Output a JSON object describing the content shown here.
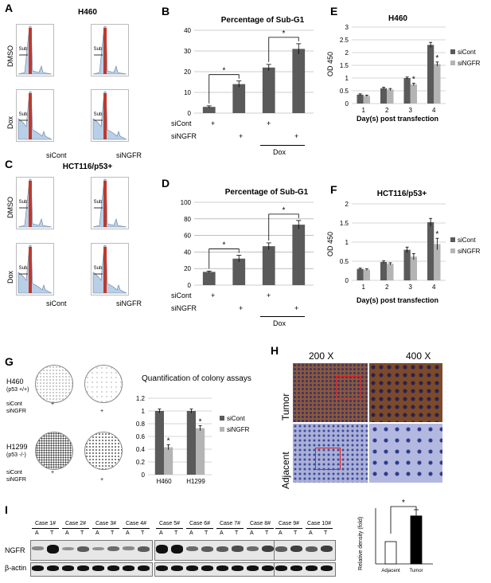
{
  "panels": {
    "A": {
      "letter": "A",
      "title": "H460",
      "row_labels": [
        "DMSO",
        "Dox"
      ],
      "col_labels": [
        "siCont",
        "siNGFR"
      ],
      "subg1": "Sub\n-G1"
    },
    "B": {
      "letter": "B",
      "title": "Percentage of Sub-G1",
      "rows": [
        "siCont",
        "siNGFR"
      ],
      "dox": "Dox"
    },
    "C": {
      "letter": "C",
      "title": "HCT116/p53+",
      "row_labels": [
        "DMSO",
        "Dox"
      ],
      "col_labels": [
        "siCont",
        "siNGFR"
      ]
    },
    "D": {
      "letter": "D",
      "title": "Percentage of Sub-G1",
      "rows": [
        "siCont",
        "siNGFR"
      ],
      "dox": "Dox"
    },
    "E": {
      "letter": "E",
      "title": "H460",
      "xlabel": "Day(s) post transfection",
      "ylabel": "OD 450",
      "legend": [
        "siCont",
        "siNGFR"
      ]
    },
    "F": {
      "letter": "F",
      "title": "HCT116/p53+",
      "xlabel": "Day(s) post transfection",
      "ylabel": "OD 450",
      "legend": [
        "siCont",
        "siNGFR"
      ]
    },
    "G": {
      "letter": "G",
      "title": "Quantification of colony assays",
      "cell1": "H460",
      "cell1_type": "(p53 +/+)",
      "cell2": "H1299",
      "cell2_type": "(p53 -/-)",
      "row1": "siCont",
      "row2": "siNGFR",
      "legend": [
        "siCont",
        "siNGFR"
      ]
    },
    "H": {
      "letter": "H",
      "mag1": "200 X",
      "mag2": "400 X",
      "row1": "Tumor",
      "row2": "Adjacent"
    },
    "I": {
      "letter": "I",
      "cases": [
        "Case 1#",
        "Case 2#",
        "Case 3#",
        "Case 4#",
        "Case 5#",
        "Case 6#",
        "Case 7#",
        "Case 8#",
        "Case 9#",
        "Case 10#"
      ],
      "lane_a": "A",
      "lane_t": "T",
      "protein1": "NGFR",
      "protein2": "β-actin",
      "ylabel": "Relative density (fold)",
      "categories": [
        "Adjacent",
        "Tumor"
      ]
    }
  },
  "significance": "*",
  "plus": "+",
  "colors": {
    "dark": "#5a5a5a",
    "light": "#b4b4b4",
    "red": "#c0392b",
    "blue_fill": "#b9cfe8"
  },
  "chart_data": [
    {
      "panel": "B",
      "type": "bar",
      "title": "Percentage of Sub-G1",
      "categories": [
        "siCont",
        "siNGFR",
        "siCont+Dox",
        "siNGFR+Dox"
      ],
      "values": [
        3,
        14,
        22,
        31
      ],
      "errors": [
        0.5,
        1.5,
        1.5,
        2.5
      ],
      "ylim": [
        0,
        40
      ],
      "yticks": [
        0,
        10,
        20,
        30,
        40
      ]
    },
    {
      "panel": "D",
      "type": "bar",
      "title": "Percentage of Sub-G1",
      "categories": [
        "siCont",
        "siNGFR",
        "siCont+Dox",
        "siNGFR+Dox"
      ],
      "values": [
        16,
        32,
        47,
        73
      ],
      "errors": [
        1,
        4,
        4,
        5
      ],
      "ylim": [
        0,
        100
      ],
      "yticks": [
        0,
        20,
        40,
        60,
        80,
        100
      ]
    },
    {
      "panel": "E",
      "type": "bar",
      "title": "H460",
      "categories": [
        "1",
        "2",
        "3",
        "4"
      ],
      "ylim": [
        0,
        3
      ],
      "yticks": [
        0,
        0.5,
        1,
        1.5,
        2,
        2.5,
        3
      ],
      "xlabel": "Day(s) post transfection",
      "ylabel": "OD 450",
      "series": [
        {
          "name": "siCont",
          "values": [
            0.35,
            0.6,
            1.0,
            2.3
          ],
          "errors": [
            0.03,
            0.04,
            0.04,
            0.1
          ]
        },
        {
          "name": "siNGFR",
          "values": [
            0.3,
            0.55,
            0.75,
            1.55
          ],
          "errors": [
            0.03,
            0.04,
            0.05,
            0.08
          ]
        }
      ]
    },
    {
      "panel": "F",
      "type": "bar",
      "title": "HCT116/p53+",
      "categories": [
        "1",
        "2",
        "3",
        "4"
      ],
      "ylim": [
        0,
        2
      ],
      "yticks": [
        0,
        0.5,
        1,
        1.5,
        2
      ],
      "xlabel": "Day(s) post transfection",
      "ylabel": "OD 450",
      "series": [
        {
          "name": "siCont",
          "values": [
            0.3,
            0.48,
            0.8,
            1.52
          ],
          "errors": [
            0.02,
            0.03,
            0.07,
            0.1
          ]
        },
        {
          "name": "siNGFR",
          "values": [
            0.28,
            0.43,
            0.62,
            0.95
          ],
          "errors": [
            0.02,
            0.03,
            0.08,
            0.15
          ]
        }
      ]
    },
    {
      "panel": "G",
      "type": "bar",
      "title": "Quantification of colony assays",
      "categories": [
        "H460",
        "H1299"
      ],
      "ylim": [
        0,
        1.2
      ],
      "yticks": [
        0,
        0.2,
        0.4,
        0.6,
        0.8,
        1,
        1.2
      ],
      "series": [
        {
          "name": "siCont",
          "values": [
            1.0,
            1.0
          ],
          "errors": [
            0.03,
            0.03
          ]
        },
        {
          "name": "siNGFR",
          "values": [
            0.43,
            0.73
          ],
          "errors": [
            0.04,
            0.04
          ]
        }
      ]
    },
    {
      "panel": "I",
      "type": "bar",
      "categories": [
        "Adjacent",
        "Tumor"
      ],
      "values": [
        1.0,
        2.15
      ],
      "errors": [
        0,
        0.28
      ],
      "ylim": [
        0,
        2.5
      ],
      "ylabel": "Relative density (fold)"
    }
  ]
}
